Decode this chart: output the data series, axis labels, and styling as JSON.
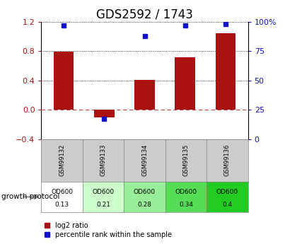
{
  "title": "GDS2592 / 1743",
  "samples": [
    "GSM99132",
    "GSM99133",
    "GSM99134",
    "GSM99135",
    "GSM99136"
  ],
  "log2_ratio": [
    0.79,
    -0.1,
    0.41,
    0.72,
    1.05
  ],
  "percentile_rank": [
    97,
    17,
    88,
    97,
    98
  ],
  "left_ylim": [
    -0.4,
    1.2
  ],
  "right_ylim": [
    0,
    100
  ],
  "left_yticks": [
    -0.4,
    0.0,
    0.4,
    0.8,
    1.2
  ],
  "right_yticks": [
    0,
    25,
    50,
    75,
    100
  ],
  "bar_color": "#aa1111",
  "dot_color": "#1111cc",
  "bar_width": 0.5,
  "zero_line_color": "#cc4444",
  "protocol_label": "growth protocol",
  "od_values": [
    "0.13",
    "0.21",
    "0.28",
    "0.34",
    "0.4"
  ],
  "od_label": "OD600",
  "od_colors": [
    "#ffffff",
    "#ccffcc",
    "#99ee99",
    "#55dd55",
    "#22cc22"
  ],
  "gsm_bg_color": "#cccccc",
  "legend_red_label": "log2 ratio",
  "legend_blue_label": "percentile rank within the sample",
  "title_fontsize": 12,
  "tick_fontsize": 8
}
